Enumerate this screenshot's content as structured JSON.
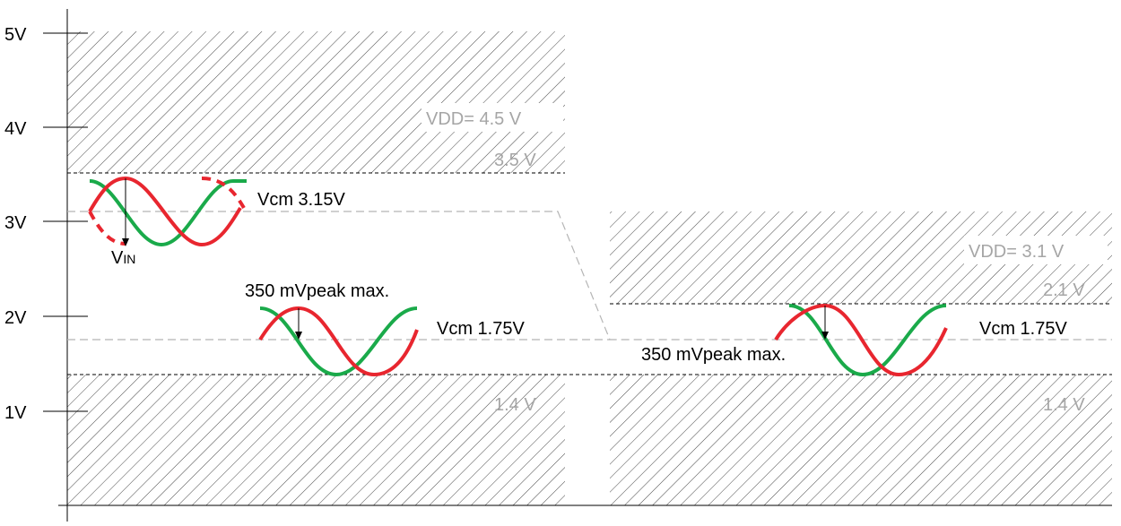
{
  "axis": {
    "ticks": [
      "5V",
      "4V",
      "3V",
      "2V",
      "1V"
    ]
  },
  "left_panel": {
    "vdd_label": "VDD= 4.5 V",
    "upper_limit": "3.5 V",
    "lower_limit": "1.4 V",
    "vcm_high": "Vcm 3.15V",
    "vcm_low": "Vcm 1.75V",
    "vin_label": "V",
    "vin_subscript": "IN",
    "amplitude_label": "350 mVpeak max."
  },
  "right_panel": {
    "vdd_label": "VDD= 3.1 V",
    "upper_limit": "2.1 V",
    "lower_limit": "1.4 V",
    "vcm": "Vcm 1.75V",
    "amplitude_label": "350 mVpeak max."
  },
  "colors": {
    "red": "#e8262f",
    "green": "#1aaa4a",
    "grey_text": "#a6a6a6",
    "dashed_grey": "#b5b5b5"
  }
}
